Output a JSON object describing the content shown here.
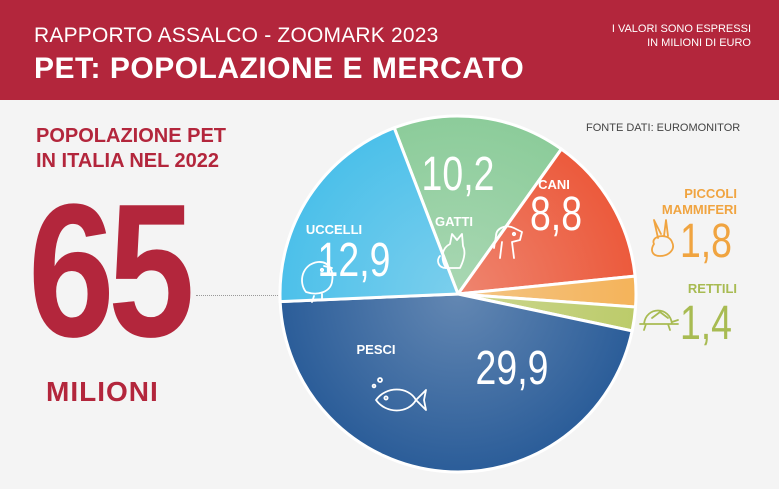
{
  "header": {
    "supertitle": "RAPPORTO ASSALCO - ZOOMARK 2023",
    "title": "PET: POPOLAZIONE E MERCATO",
    "note_line1": "I VALORI  SONO ESPRESSI",
    "note_line2": "IN MILIONI DI EURO"
  },
  "population": {
    "title_line1": "POPOLAZIONE PET",
    "title_line2": "IN ITALIA NEL 2022",
    "number": "65",
    "unit": "MILIONI"
  },
  "source": "FONTE DATI: EUROMONITOR",
  "chart_data": {
    "type": "pie",
    "categories": [
      "GATTI",
      "CANI",
      "PICCOLI MAMMIFERI",
      "RETTILI",
      "PESCI",
      "UCCELLI"
    ],
    "values": [
      10.2,
      8.8,
      1.8,
      1.4,
      29.9,
      12.9
    ],
    "value_labels": [
      "10,2",
      "8,8",
      "1,8",
      "1,4",
      "29,9",
      "12,9"
    ],
    "colors": [
      "#8ccc9a",
      "#ec5a3c",
      "#f4b35a",
      "#bccb6a",
      "#2b5d99",
      "#4cc0ea"
    ],
    "icons": [
      "cat-icon",
      "dog-icon",
      "rabbit-icon",
      "turtle-icon",
      "fish-icon",
      "bird-icon"
    ]
  }
}
